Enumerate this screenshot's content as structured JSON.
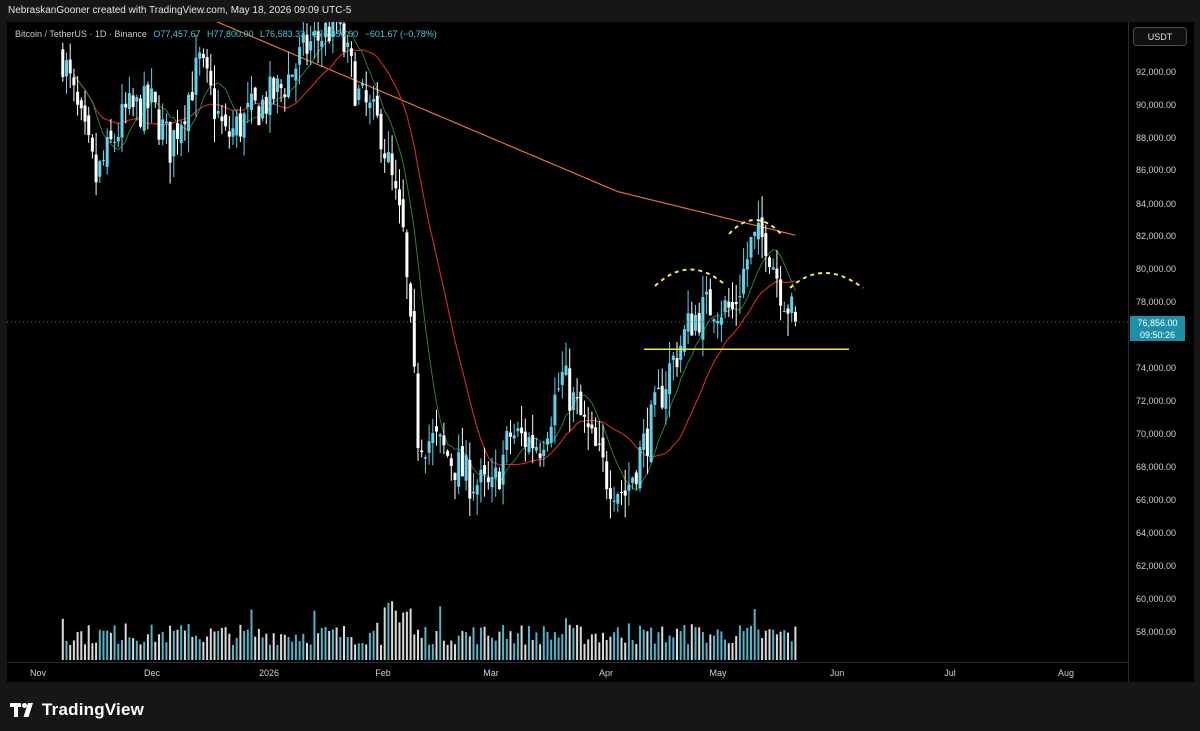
{
  "header": {
    "attribution": "NebraskanGooner created with TradingView.com, May 18, 2026 09:09 UTC-5"
  },
  "legend": {
    "symbol": "Bitcoin / TetherUS · 1D · Binance",
    "open": "O77,457.67",
    "high": "H77,800.00",
    "low": "L76,583.33",
    "close": "C76,856.00",
    "change": "−601.67 (−0.78%)"
  },
  "price_axis": {
    "currency_button": "USDT",
    "labels": [
      "92,000.00",
      "90,000.00",
      "88,000.00",
      "86,000.00",
      "84,000.00",
      "82,000.00",
      "80,000.00",
      "78,000.00",
      "74,000.00",
      "72,000.00",
      "70,000.00",
      "68,000.00",
      "66,000.00",
      "64,000.00",
      "62,000.00",
      "60,000.00",
      "58,000.00"
    ],
    "last_price": "76,856.00",
    "countdown": "09:50:26"
  },
  "time_axis": {
    "labels": [
      "Nov",
      "Dec",
      "2026",
      "Feb",
      "Mar",
      "Apr",
      "May",
      "Jun",
      "Jul",
      "Aug"
    ]
  },
  "footer": {
    "brand": "TradingView"
  },
  "colors": {
    "up": "#5fd3ec",
    "down": "#ffffff",
    "ma_slow": "#e0703a",
    "ma_mid": "#c62828",
    "ma_fast": "#2e7d32",
    "support_line": "#f5e94b",
    "pattern_dots": "#f5e94b",
    "last_price_bg": "#1e8fa8"
  },
  "chart_data": {
    "type": "candlestick",
    "ylim": [
      56500,
      95000
    ],
    "support_level": 75200,
    "last_price": 76856,
    "anchor_closes": [
      [
        "2025-11-01",
        93000
      ],
      [
        "2025-11-05",
        89500
      ],
      [
        "2025-11-10",
        85500
      ],
      [
        "2025-11-18",
        89500
      ],
      [
        "2025-11-25",
        90000
      ],
      [
        "2025-11-30",
        87500
      ],
      [
        "2025-12-08",
        92500
      ],
      [
        "2025-12-15",
        88000
      ],
      [
        "2025-12-22",
        89500
      ],
      [
        "2025-12-30",
        91000
      ],
      [
        "2026-01-06",
        93500
      ],
      [
        "2026-01-14",
        95000
      ],
      [
        "2026-01-20",
        90500
      ],
      [
        "2026-01-26",
        88500
      ],
      [
        "2026-02-01",
        82000
      ],
      [
        "2026-02-05",
        70000
      ],
      [
        "2026-02-10",
        69500
      ],
      [
        "2026-02-18",
        67500
      ],
      [
        "2026-02-25",
        66500
      ],
      [
        "2026-03-02",
        70000
      ],
      [
        "2026-03-10",
        69500
      ],
      [
        "2026-03-16",
        73500
      ],
      [
        "2026-03-22",
        70500
      ],
      [
        "2026-03-28",
        67500
      ],
      [
        "2026-04-02",
        66500
      ],
      [
        "2026-04-08",
        70000
      ],
      [
        "2026-04-14",
        74000
      ],
      [
        "2026-04-20",
        77000
      ],
      [
        "2026-04-26",
        78000
      ],
      [
        "2026-05-01",
        77500
      ],
      [
        "2026-05-06",
        81500
      ],
      [
        "2026-05-10",
        82000
      ],
      [
        "2026-05-14",
        79000
      ],
      [
        "2026-05-18",
        76856
      ]
    ],
    "volume_scale_max": 100
  }
}
